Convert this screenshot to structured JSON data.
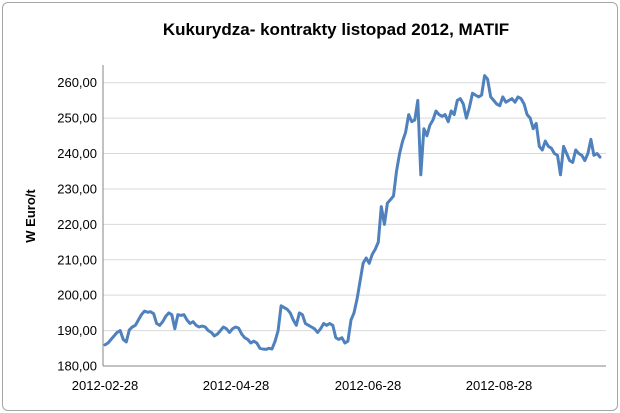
{
  "chart_data": {
    "type": "line",
    "title": "Kukurydza- kontrakty listopad 2012, MATIF",
    "ylabel": "W Euro/t",
    "xlabel": "",
    "ylim": [
      180,
      265
    ],
    "yticks": [
      "180,00",
      "190,00",
      "200,00",
      "210,00",
      "220,00",
      "230,00",
      "240,00",
      "250,00",
      "260,00"
    ],
    "xticks": [
      "2012-02-28",
      "2012-04-28",
      "2012-06-28",
      "2012-08-28"
    ],
    "grid": true,
    "legend": "none",
    "series": [
      {
        "color": "#4f81bd",
        "values": [
          186.0,
          186.5,
          187.5,
          188.5,
          189.5,
          190.0,
          187.5,
          186.8,
          190.2,
          191.0,
          191.5,
          193.0,
          194.5,
          195.5,
          195.2,
          195.3,
          194.8,
          192.0,
          191.5,
          192.5,
          194.0,
          195.0,
          194.5,
          190.5,
          194.5,
          194.3,
          194.5,
          193.0,
          192.0,
          192.5,
          191.5,
          191.0,
          191.3,
          191.0,
          190.0,
          189.5,
          188.5,
          189.0,
          190.0,
          191.0,
          190.5,
          189.5,
          190.5,
          191.0,
          190.7,
          189.0,
          188.0,
          187.5,
          186.5,
          187.0,
          186.5,
          185.0,
          184.8,
          184.7,
          185.0,
          184.8,
          187.0,
          190.0,
          197.0,
          196.5,
          196.0,
          195.0,
          193.0,
          191.5,
          195.0,
          194.5,
          192.0,
          191.5,
          191.0,
          190.5,
          189.5,
          190.5,
          192.0,
          191.5,
          192.0,
          191.5,
          188.0,
          187.5,
          188.0,
          186.5,
          187.0,
          193.0,
          195.0,
          199.0,
          204.0,
          209.0,
          210.5,
          209.0,
          211.5,
          213.0,
          215.0,
          225.0,
          220.0,
          226.0,
          227.0,
          228.0,
          235.0,
          240.0,
          243.5,
          246.0,
          251.0,
          249.0,
          249.5,
          255.0,
          234.0,
          247.0,
          245.0,
          248.0,
          249.5,
          252.0,
          251.0,
          250.5,
          251.0,
          249.0,
          252.0,
          251.0,
          255.0,
          255.5,
          254.0,
          250.0,
          253.0,
          257.0,
          256.5,
          256.0,
          256.5,
          262.0,
          261.0,
          256.0,
          255.0,
          254.0,
          253.5,
          256.0,
          254.5,
          255.0,
          255.5,
          254.5,
          256.0,
          255.5,
          254.0,
          251.0,
          250.0,
          247.0,
          248.5,
          242.0,
          241.0,
          243.5,
          242.0,
          241.5,
          240.0,
          239.5,
          234.0,
          242.0,
          240.0,
          238.0,
          237.5,
          241.0,
          240.0,
          239.5,
          238.0,
          240.0,
          244.0,
          239.5,
          240.0,
          239.0
        ]
      }
    ]
  }
}
